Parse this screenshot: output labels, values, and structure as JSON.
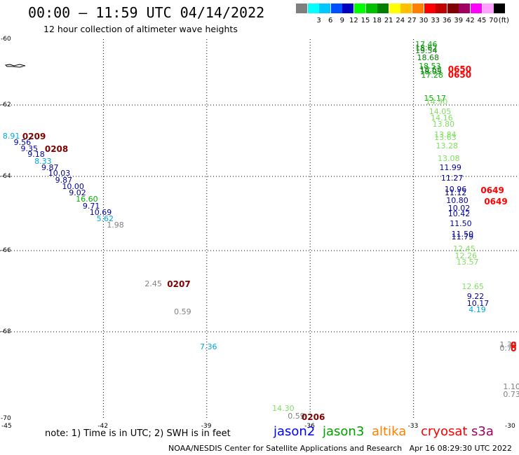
{
  "title": "00:00 – 11:59 UTC 04/14/2022",
  "subtitle": "12 hour collection of altimeter wave heights",
  "legend": {
    "swatches": [
      {
        "label": "",
        "color": "#7f7f7f"
      },
      {
        "label": "3",
        "color": "#00ffff"
      },
      {
        "label": "6",
        "color": "#00c8ff"
      },
      {
        "label": "9",
        "color": "#0050ff"
      },
      {
        "label": "12",
        "color": "#0000c0"
      },
      {
        "label": "15",
        "color": "#00ff00"
      },
      {
        "label": "18",
        "color": "#00c000"
      },
      {
        "label": "21",
        "color": "#008000"
      },
      {
        "label": "24",
        "color": "#ffff00"
      },
      {
        "label": "27",
        "color": "#ffc000"
      },
      {
        "label": "30",
        "color": "#ff8000"
      },
      {
        "label": "33",
        "color": "#ff0000"
      },
      {
        "label": "36",
        "color": "#c00000"
      },
      {
        "label": "39",
        "color": "#800000"
      },
      {
        "label": "42",
        "color": "#a00060"
      },
      {
        "label": "45",
        "color": "#ff00ff"
      },
      {
        "label": "70",
        "color": "#ffa0ff"
      },
      {
        "label": "",
        "color": "#000000"
      }
    ],
    "unit": "(ft)"
  },
  "axes": {
    "lat_labels": [
      "-60",
      "-62",
      "-64",
      "-66",
      "-68",
      "-70"
    ],
    "lon_labels": [
      "-45",
      "-42",
      "-39",
      "-36",
      "-33",
      "-30"
    ],
    "lon_range": [
      -45,
      -30
    ],
    "lat_range": [
      -60,
      -70
    ]
  },
  "heights": [
    {
      "text": "8.91",
      "color": "#00a8e0",
      "lon": -44.92,
      "lat": -62.88
    },
    {
      "text": "9.56",
      "color": "#0000a0",
      "lon": -44.6,
      "lat": -63.05
    },
    {
      "text": "9.35",
      "color": "#0000a0",
      "lon": -44.4,
      "lat": -63.23
    },
    {
      "text": "9.18",
      "color": "#0000a0",
      "lon": -44.2,
      "lat": -63.4
    },
    {
      "text": "8.33",
      "color": "#00a8e0",
      "lon": -44.0,
      "lat": -63.58
    },
    {
      "text": "9.87",
      "color": "#0000a0",
      "lon": -43.8,
      "lat": -63.76
    },
    {
      "text": "10.03",
      "color": "#0000a0",
      "lon": -43.6,
      "lat": -63.93
    },
    {
      "text": "9.87",
      "color": "#0000a0",
      "lon": -43.4,
      "lat": -64.11
    },
    {
      "text": "10.00",
      "color": "#0000a0",
      "lon": -43.2,
      "lat": -64.28
    },
    {
      "text": "9.02",
      "color": "#0000a0",
      "lon": -43.0,
      "lat": -64.46
    },
    {
      "text": "16.60",
      "color": "#00b000",
      "lon": -42.8,
      "lat": -64.63
    },
    {
      "text": "9.71",
      "color": "#0000a0",
      "lon": -42.6,
      "lat": -64.81
    },
    {
      "text": "10.69",
      "color": "#0000a0",
      "lon": -42.4,
      "lat": -64.98
    },
    {
      "text": "5.62",
      "color": "#00a8e0",
      "lon": -42.2,
      "lat": -65.16
    },
    {
      "text": "1.98",
      "color": "#808080",
      "lon": -41.9,
      "lat": -65.33
    },
    {
      "text": "2.45",
      "color": "#808080",
      "lon": -40.8,
      "lat": -66.82
    },
    {
      "text": "0.59",
      "color": "#808080",
      "lon": -39.95,
      "lat": -67.52
    },
    {
      "text": "7.36",
      "color": "#00a8e0",
      "lon": -39.2,
      "lat": -68.35
    },
    {
      "text": "14.30",
      "color": "#80e060",
      "lon": -37.1,
      "lat": -69.78
    },
    {
      "text": "0.59",
      "color": "#808080",
      "lon": -36.65,
      "lat": -69.95
    },
    {
      "text": "17.46",
      "color": "#00b000",
      "lon": -32.95,
      "lat": -60.16
    },
    {
      "text": "18.62",
      "color": "#008000",
      "lon": -32.95,
      "lat": -60.27
    },
    {
      "text": "19.54",
      "color": "#008000",
      "lon": -32.95,
      "lat": -60.37
    },
    {
      "text": "18.68",
      "color": "#008000",
      "lon": -32.9,
      "lat": -60.58
    },
    {
      "text": "18.53",
      "color": "#00b000",
      "lon": -32.85,
      "lat": -60.84
    },
    {
      "text": "18.63",
      "color": "#008000",
      "lon": -32.82,
      "lat": -60.93
    },
    {
      "text": "18.05",
      "color": "#008000",
      "lon": -32.82,
      "lat": -61.0
    },
    {
      "text": "17.28",
      "color": "#00b000",
      "lon": -32.78,
      "lat": -61.1
    },
    {
      "text": "15.17",
      "color": "#00b000",
      "lon": -32.7,
      "lat": -61.8
    },
    {
      "text": "14.90",
      "color": "#80e060",
      "lon": -32.65,
      "lat": -61.92
    },
    {
      "text": "14.05",
      "color": "#80e060",
      "lon": -32.55,
      "lat": -62.2
    },
    {
      "text": "14.16",
      "color": "#80e060",
      "lon": -32.5,
      "lat": -62.37
    },
    {
      "text": "13.80",
      "color": "#80e060",
      "lon": -32.45,
      "lat": -62.55
    },
    {
      "text": "13.84",
      "color": "#80e060",
      "lon": -32.4,
      "lat": -62.84
    },
    {
      "text": "13.63",
      "color": "#80e060",
      "lon": -32.4,
      "lat": -62.93
    },
    {
      "text": "13.28",
      "color": "#80e060",
      "lon": -32.35,
      "lat": -63.15
    },
    {
      "text": "13.08",
      "color": "#80e060",
      "lon": -32.3,
      "lat": -63.51
    },
    {
      "text": "11.99",
      "color": "#0000a0",
      "lon": -32.25,
      "lat": -63.77
    },
    {
      "text": "11.27",
      "color": "#0000a0",
      "lon": -32.2,
      "lat": -64.05
    },
    {
      "text": "10.96",
      "color": "#0000a0",
      "lon": -32.1,
      "lat": -64.36
    },
    {
      "text": "11.12",
      "color": "#0000a0",
      "lon": -32.1,
      "lat": -64.46
    },
    {
      "text": "10.80",
      "color": "#0000a0",
      "lon": -32.05,
      "lat": -64.66
    },
    {
      "text": "10.02",
      "color": "#0000a0",
      "lon": -32.0,
      "lat": -64.87
    },
    {
      "text": "10.42",
      "color": "#0000a0",
      "lon": -32.0,
      "lat": -65.01
    },
    {
      "text": "11.50",
      "color": "#0000a0",
      "lon": -31.95,
      "lat": -65.28
    },
    {
      "text": "11.50",
      "color": "#0000a0",
      "lon": -31.9,
      "lat": -65.56
    },
    {
      "text": "11.79",
      "color": "#0000a0",
      "lon": -31.9,
      "lat": -65.65
    },
    {
      "text": "12.45",
      "color": "#80e060",
      "lon": -31.85,
      "lat": -65.96
    },
    {
      "text": "12.26",
      "color": "#80e060",
      "lon": -31.8,
      "lat": -66.14
    },
    {
      "text": "13.57",
      "color": "#80e060",
      "lon": -31.75,
      "lat": -66.29
    },
    {
      "text": "12.65",
      "color": "#80e060",
      "lon": -31.6,
      "lat": -66.9
    },
    {
      "text": "9.22",
      "color": "#0000a0",
      "lon": -31.45,
      "lat": -67.13
    },
    {
      "text": "10.17",
      "color": "#0000a0",
      "lon": -31.45,
      "lat": -67.31
    },
    {
      "text": "4.19",
      "color": "#00a8e0",
      "lon": -31.4,
      "lat": -67.47
    },
    {
      "text": "1.38",
      "color": "#808080",
      "lon": -30.5,
      "lat": -68.3
    },
    {
      "text": "0.75",
      "color": "#808080",
      "lon": -30.5,
      "lat": -68.39
    },
    {
      "text": "1.10",
      "color": "#808080",
      "lon": -30.4,
      "lat": -69.28
    },
    {
      "text": "0.73",
      "color": "#808080",
      "lon": -30.4,
      "lat": -69.45
    }
  ],
  "times": [
    {
      "text": "0209",
      "color": "#800000",
      "lon": -44.35,
      "lat": -62.88
    },
    {
      "text": "0208",
      "color": "#800000",
      "lon": -43.7,
      "lat": -63.23
    },
    {
      "text": "0207",
      "color": "#800000",
      "lon": -40.15,
      "lat": -66.82
    },
    {
      "text": "0206",
      "color": "#800000",
      "lon": -36.25,
      "lat": -69.96
    },
    {
      "text": "0650",
      "color": "#ff0000",
      "lon": -32.0,
      "lat": -60.92
    },
    {
      "text": "0650",
      "color": "#ff0000",
      "lon": -32.0,
      "lat": -61.08
    },
    {
      "text": "0649",
      "color": "#ff0000",
      "lon": -31.05,
      "lat": -64.38
    },
    {
      "text": "0649",
      "color": "#ff0000",
      "lon": -30.95,
      "lat": -64.68
    },
    {
      "text": "0",
      "color": "#ff0000",
      "lon": -30.0,
      "lat": -68.3
    },
    {
      "text": "0",
      "color": "#ff0000",
      "lon": -30.0,
      "lat": -68.39
    }
  ],
  "note": "note: 1) Time is in UTC; 2) SWH is in feet",
  "satellites": [
    {
      "name": "jason2",
      "color": "#0000ff"
    },
    {
      "name": "jason3",
      "color": "#00a000"
    },
    {
      "name": "altika",
      "color": "#ff8000"
    },
    {
      "name": "cryosat",
      "color": "#ff0000"
    },
    {
      "name": "s3a",
      "color": "#a00060"
    }
  ],
  "footer": "NOAA/NESDIS Center for Satellite Applications and Research   Apr 16 08:29:30 UTC 2022"
}
